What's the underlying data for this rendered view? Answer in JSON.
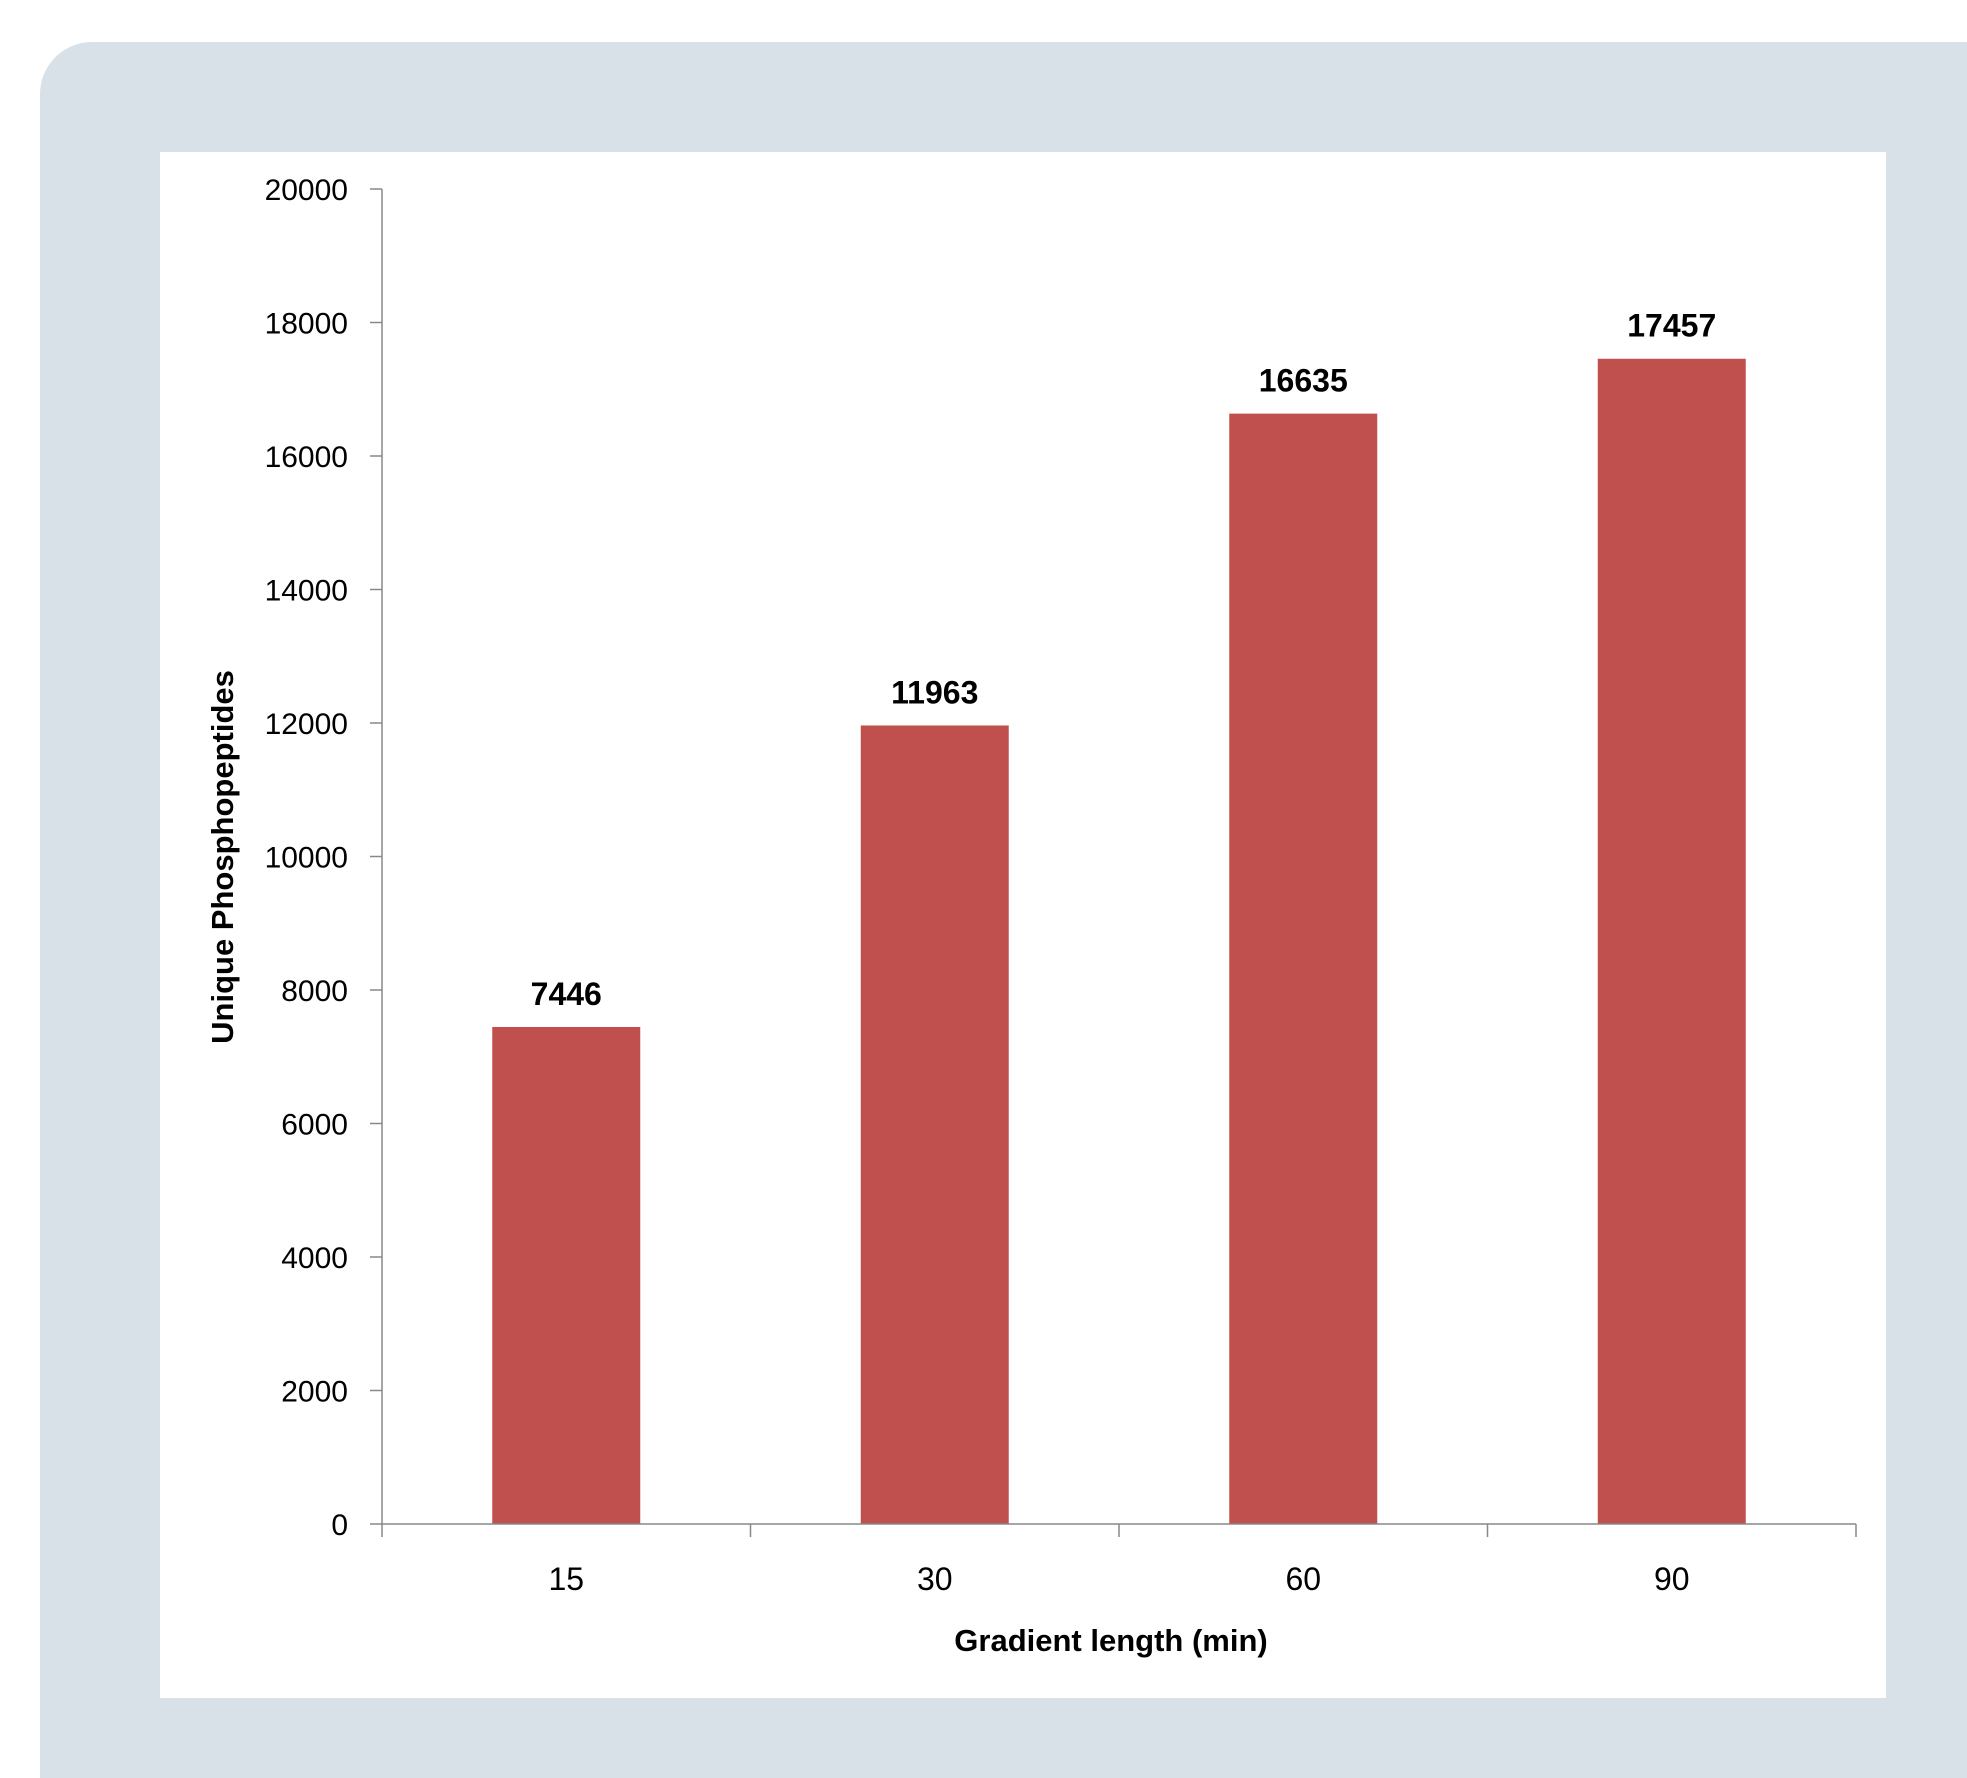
{
  "chart_data": {
    "type": "bar",
    "categories": [
      "15",
      "30",
      "60",
      "90"
    ],
    "values": [
      7446,
      11963,
      16635,
      17457
    ],
    "data_labels": [
      "7446",
      "11963",
      "16635",
      "17457"
    ],
    "title": "",
    "xlabel": "Gradient length (min)",
    "ylabel": "Unique Phosphopeptides",
    "ylim": [
      0,
      20000
    ],
    "yticks": [
      0,
      2000,
      4000,
      6000,
      8000,
      10000,
      12000,
      14000,
      16000,
      18000,
      20000
    ],
    "ytick_labels": [
      "0",
      "2000",
      "4000",
      "6000",
      "8000",
      "10000",
      "12000",
      "14000",
      "16000",
      "18000",
      "20000"
    ],
    "grid": false,
    "legend": "none",
    "colors": {
      "bar": "#c0504d",
      "frame": "#d9e1e8",
      "axis": "#888888",
      "text": "#000000"
    }
  }
}
